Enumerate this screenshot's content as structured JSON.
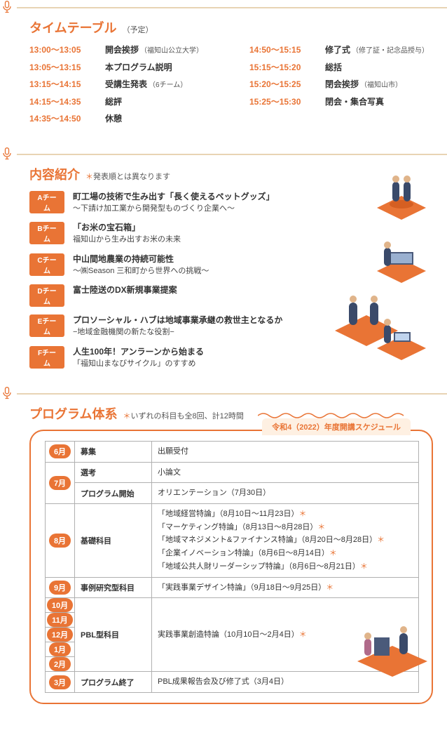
{
  "colors": {
    "accent": "#e97435",
    "head_line": "#e8d4b4",
    "tab_bg": "#fef0e2",
    "border": "#b0b0b0",
    "text": "#333333",
    "subtext": "#555555",
    "white": "#ffffff"
  },
  "timetable": {
    "title": "タイムテーブル",
    "title_note": "（予定）",
    "left": [
      {
        "time": "13:00～13:05",
        "label": "開会挨拶",
        "sub": "（福知山公立大学）"
      },
      {
        "time": "13:05～13:15",
        "label": "本プログラム説明",
        "sub": ""
      },
      {
        "time": "13:15～14:15",
        "label": "受講生発表",
        "sub": "（6チーム）"
      },
      {
        "time": "14:15～14:35",
        "label": "総評",
        "sub": ""
      },
      {
        "time": "14:35～14:50",
        "label": "休憩",
        "sub": ""
      }
    ],
    "right": [
      {
        "time": "14:50～15:15",
        "label": "修了式",
        "sub": "（修了証・記念品授与）"
      },
      {
        "time": "15:15～15:20",
        "label": "総括",
        "sub": ""
      },
      {
        "time": "15:20～15:25",
        "label": "閉会挨拶",
        "sub": "（福知山市）"
      },
      {
        "time": "15:25～15:30",
        "label": "閉会・集合写真",
        "sub": ""
      }
    ]
  },
  "contents": {
    "title": "内容紹介",
    "title_note": "＊発表順とは異なります",
    "teams": [
      {
        "badge": "Aチーム",
        "color": "#e97435",
        "line1": "町工場の技術で生み出す「長く使えるペットグッズ」",
        "line2": "～下請け加工業から開発型ものづくり企業へ～"
      },
      {
        "badge": "Bチーム",
        "color": "#e97435",
        "line1": "「お米の宝石箱」",
        "line2": "福知山から生み出すお米の未来"
      },
      {
        "badge": "Cチーム",
        "color": "#e97435",
        "line1": "中山間地農業の持続可能性",
        "line2": "～㈱Season 三和町から世界への挑戦～"
      },
      {
        "badge": "Dチーム",
        "color": "#e97435",
        "line1": "富士陸送のDX新規事業提案",
        "line2": ""
      },
      {
        "badge": "Eチーム",
        "color": "#e97435",
        "line1": "プロソーシャル・ハブは地域事業承継の救世主となるか",
        "line2": "−地域金融機関の新たな役割−"
      },
      {
        "badge": "Fチーム",
        "color": "#e97435",
        "line1": "人生100年！アンラーンから始まる",
        "line2": "「福知山まなびサイクル」のすすめ"
      }
    ]
  },
  "program": {
    "title": "プログラム体系",
    "title_note": "＊いずれの科目も全8回、計12時間",
    "tab": "令和4（2022）年度開講スケジュール",
    "rows": [
      {
        "months": [
          "6月"
        ],
        "cat": "募集",
        "detail": "出願受付"
      },
      {
        "months": [
          "7月"
        ],
        "cat": "選考",
        "detail": "小論文",
        "span_month": 2
      },
      {
        "months": [],
        "cat": "プログラム開始",
        "detail": "オリエンテーション（7月30日）"
      },
      {
        "months": [
          "8月"
        ],
        "cat": "基礎科目",
        "detail": "「地域経営特論」（8月10日～11月23日）＊\n「マーケティング特論」（8月13日～8月28日）＊\n「地域マネジメント&ファイナンス特論」（8月20日～8月28日）＊\n「企業イノベーション特論」（8月6日～8月14日）＊\n「地域公共人財リーダーシップ特論」（8月6日～8月21日）＊"
      },
      {
        "months": [
          "9月"
        ],
        "cat": "事例研究型科目",
        "detail": "「実践事業デザイン特論」（9月18日～9月25日）＊"
      },
      {
        "months": [
          "10月",
          "11月",
          "12月",
          "1月",
          "2月"
        ],
        "cat": "PBL型科目",
        "detail": "実践事業創造特論（10月10日～2月4日）＊"
      },
      {
        "months": [
          "3月"
        ],
        "cat": "プログラム終了",
        "detail": "PBL成果報告会及び修了式（3月4日）"
      }
    ]
  }
}
